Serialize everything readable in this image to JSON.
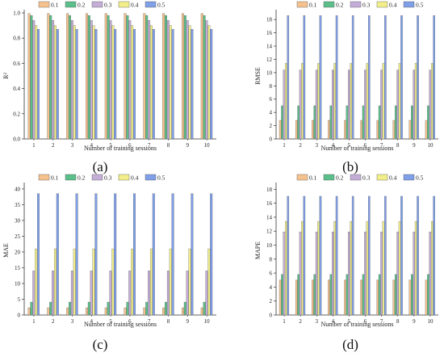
{
  "legend_labels": [
    "0.1",
    "0.2",
    "0.3",
    "0.4",
    "0.5"
  ],
  "series_colors": [
    "#f5c28e",
    "#5bbf8a",
    "#c4aed8",
    "#f2ef8a",
    "#7f9fe8"
  ],
  "chart_data": [
    {
      "type": "bar",
      "panel_label": "(a)",
      "ylabel": "R²",
      "xlabel": "Number of training sessions",
      "categories": [
        "1",
        "2",
        "3",
        "4",
        "5",
        "6",
        "7",
        "8",
        "9",
        "10"
      ],
      "ylim": [
        0,
        1.0
      ],
      "yticks": [
        "0.0",
        "0.2",
        "0.4",
        "0.6",
        "0.8",
        "1.0"
      ],
      "ytick_values": [
        0,
        0.2,
        0.4,
        0.6,
        0.8,
        1.0
      ],
      "series": [
        {
          "name": "0.1",
          "values": [
            0.995,
            0.995,
            0.995,
            0.995,
            0.995,
            0.995,
            0.995,
            0.995,
            0.995,
            0.995
          ]
        },
        {
          "name": "0.2",
          "values": [
            0.98,
            0.98,
            0.98,
            0.98,
            0.98,
            0.98,
            0.98,
            0.98,
            0.98,
            0.98
          ]
        },
        {
          "name": "0.3",
          "values": [
            0.94,
            0.94,
            0.94,
            0.94,
            0.94,
            0.94,
            0.94,
            0.94,
            0.94,
            0.94
          ]
        },
        {
          "name": "0.4",
          "values": [
            0.9,
            0.9,
            0.9,
            0.9,
            0.9,
            0.9,
            0.9,
            0.9,
            0.9,
            0.9
          ]
        },
        {
          "name": "0.5",
          "values": [
            0.87,
            0.87,
            0.87,
            0.87,
            0.87,
            0.87,
            0.87,
            0.87,
            0.87,
            0.87
          ]
        }
      ]
    },
    {
      "type": "bar",
      "panel_label": "(b)",
      "ylabel": "RMSE",
      "xlabel": "Number of training sessions",
      "categories": [
        "1",
        "2",
        "3",
        "4",
        "5",
        "6",
        "7",
        "8",
        "9",
        "10"
      ],
      "ylim": [
        0,
        19
      ],
      "yticks": [
        "0",
        "2",
        "4",
        "6",
        "8",
        "10",
        "12",
        "14",
        "16",
        "18"
      ],
      "ytick_values": [
        0,
        2,
        4,
        6,
        8,
        10,
        12,
        14,
        16,
        18
      ],
      "series": [
        {
          "name": "0.1",
          "values": [
            2.8,
            2.8,
            2.8,
            2.8,
            2.8,
            2.8,
            2.8,
            2.8,
            2.8,
            2.8
          ]
        },
        {
          "name": "0.2",
          "values": [
            5.0,
            5.0,
            5.0,
            5.0,
            5.0,
            5.0,
            5.0,
            5.0,
            5.0,
            5.0
          ]
        },
        {
          "name": "0.3",
          "values": [
            10.4,
            10.4,
            10.4,
            10.4,
            10.4,
            10.4,
            10.4,
            10.4,
            10.4,
            10.4
          ]
        },
        {
          "name": "0.4",
          "values": [
            11.4,
            11.4,
            11.4,
            11.4,
            11.4,
            11.4,
            11.4,
            11.4,
            11.4,
            11.4
          ]
        },
        {
          "name": "0.5",
          "values": [
            18.6,
            18.6,
            18.6,
            18.6,
            18.6,
            18.6,
            18.6,
            18.6,
            18.6,
            18.6
          ]
        }
      ]
    },
    {
      "type": "bar",
      "panel_label": "(c)",
      "ylabel": "MAE",
      "xlabel": "Number of training sessions",
      "categories": [
        "1",
        "2",
        "3",
        "4",
        "5",
        "6",
        "7",
        "8",
        "9",
        "10"
      ],
      "ylim": [
        0,
        41
      ],
      "yticks": [
        "0",
        "5",
        "10",
        "15",
        "20",
        "25",
        "30",
        "35",
        "40"
      ],
      "ytick_values": [
        0,
        5,
        10,
        15,
        20,
        25,
        30,
        35,
        40
      ],
      "series": [
        {
          "name": "0.1",
          "values": [
            2.3,
            2.3,
            2.3,
            2.3,
            2.3,
            2.3,
            2.3,
            2.3,
            2.3,
            2.3
          ]
        },
        {
          "name": "0.2",
          "values": [
            4.1,
            4.1,
            4.1,
            4.1,
            4.1,
            4.1,
            4.1,
            4.1,
            4.1,
            4.1
          ]
        },
        {
          "name": "0.3",
          "values": [
            14.0,
            14.0,
            14.0,
            14.0,
            14.0,
            14.0,
            14.0,
            14.0,
            14.0,
            14.0
          ]
        },
        {
          "name": "0.4",
          "values": [
            21.0,
            21.0,
            21.0,
            21.0,
            21.0,
            21.0,
            21.0,
            21.0,
            21.0,
            21.0
          ]
        },
        {
          "name": "0.5",
          "values": [
            38.5,
            38.5,
            38.5,
            38.5,
            38.5,
            38.5,
            38.5,
            38.5,
            38.5,
            38.5
          ]
        }
      ]
    },
    {
      "type": "bar",
      "panel_label": "(d)",
      "ylabel": "MAPE",
      "xlabel": "Number of training sessions",
      "categories": [
        "1",
        "2",
        "3",
        "4",
        "5",
        "6",
        "7",
        "8",
        "9",
        "10"
      ],
      "ylim": [
        0,
        18.5
      ],
      "yticks": [
        "0",
        "2",
        "4",
        "6",
        "8",
        "10",
        "12",
        "14",
        "16",
        "18"
      ],
      "ytick_values": [
        0,
        2,
        4,
        6,
        8,
        10,
        12,
        14,
        16,
        18
      ],
      "series": [
        {
          "name": "0.1",
          "values": [
            5.0,
            5.0,
            5.0,
            5.0,
            5.0,
            5.0,
            5.0,
            5.0,
            5.0,
            5.0
          ]
        },
        {
          "name": "0.2",
          "values": [
            5.8,
            5.8,
            5.8,
            5.8,
            5.8,
            5.8,
            5.8,
            5.8,
            5.8,
            5.8
          ]
        },
        {
          "name": "0.3",
          "values": [
            11.9,
            11.9,
            11.9,
            11.9,
            11.9,
            11.9,
            11.9,
            11.9,
            11.9,
            11.9
          ]
        },
        {
          "name": "0.4",
          "values": [
            13.4,
            13.4,
            13.4,
            13.4,
            13.4,
            13.4,
            13.4,
            13.4,
            13.4,
            13.4
          ]
        },
        {
          "name": "0.5",
          "values": [
            17.0,
            17.0,
            17.0,
            17.0,
            17.0,
            17.0,
            17.0,
            17.0,
            17.0,
            17.0
          ]
        }
      ]
    }
  ]
}
